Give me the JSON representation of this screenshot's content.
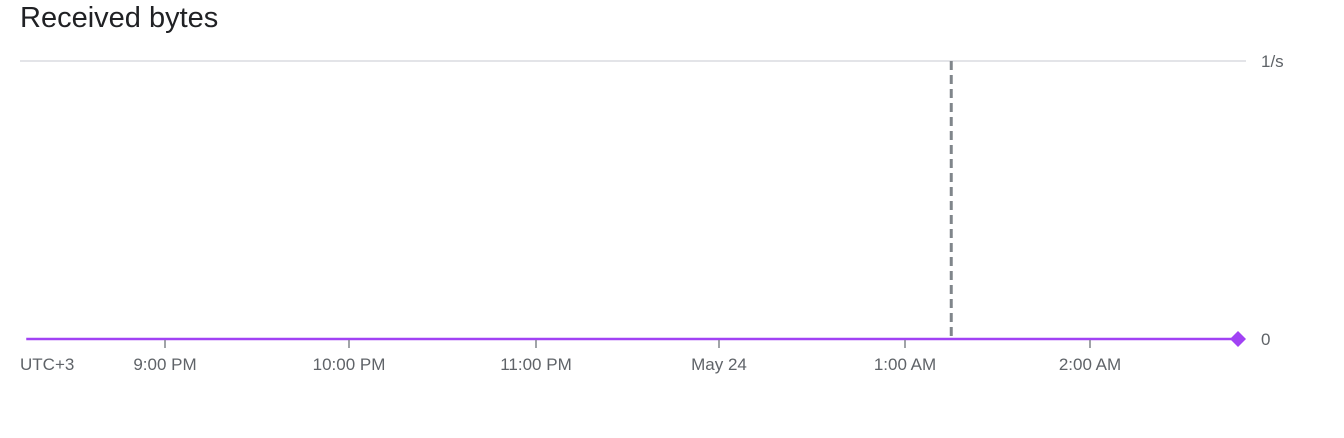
{
  "chart_data": {
    "type": "line",
    "title": "Received bytes",
    "timezone_label": "UTC+3",
    "x_ticks": [
      "9:00 PM",
      "10:00 PM",
      "11:00 PM",
      "May 24",
      "1:00 AM",
      "2:00 AM"
    ],
    "y_ticks": [
      "1/s",
      "0"
    ],
    "ylim": [
      0,
      1
    ],
    "grid": true,
    "series": [
      {
        "x": [
          "20:15",
          "02:48"
        ],
        "y": [
          0,
          0
        ],
        "color": "#a142f4",
        "end_marker": "diamond"
      }
    ],
    "annotations": [
      {
        "type": "vertical-dashed-line",
        "x": "01:15",
        "color": "#80868b"
      }
    ]
  }
}
